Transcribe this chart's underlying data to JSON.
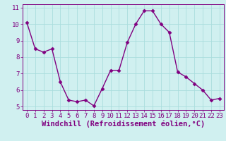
{
  "x": [
    0,
    1,
    2,
    3,
    4,
    5,
    6,
    7,
    8,
    9,
    10,
    11,
    12,
    13,
    14,
    15,
    16,
    17,
    18,
    19,
    20,
    21,
    22,
    23
  ],
  "y": [
    10.1,
    8.5,
    8.3,
    8.5,
    6.5,
    5.4,
    5.3,
    5.4,
    5.05,
    6.1,
    7.2,
    7.2,
    8.9,
    10.0,
    10.8,
    10.8,
    10.0,
    9.5,
    7.1,
    6.8,
    6.4,
    6.0,
    5.4,
    5.5
  ],
  "line_color": "#800080",
  "marker": "D",
  "marker_size": 2.5,
  "bg_color": "#d0f0f0",
  "grid_color": "#aadddd",
  "xlabel": "Windchill (Refroidissement éolien,°C)",
  "xlim": [
    -0.5,
    23.5
  ],
  "ylim": [
    4.8,
    11.2
  ],
  "yticks": [
    5,
    6,
    7,
    8,
    9,
    10,
    11
  ],
  "xticks": [
    0,
    1,
    2,
    3,
    4,
    5,
    6,
    7,
    8,
    9,
    10,
    11,
    12,
    13,
    14,
    15,
    16,
    17,
    18,
    19,
    20,
    21,
    22,
    23
  ],
  "tick_label_size": 6.5,
  "xlabel_size": 7.5,
  "line_width": 1.0
}
